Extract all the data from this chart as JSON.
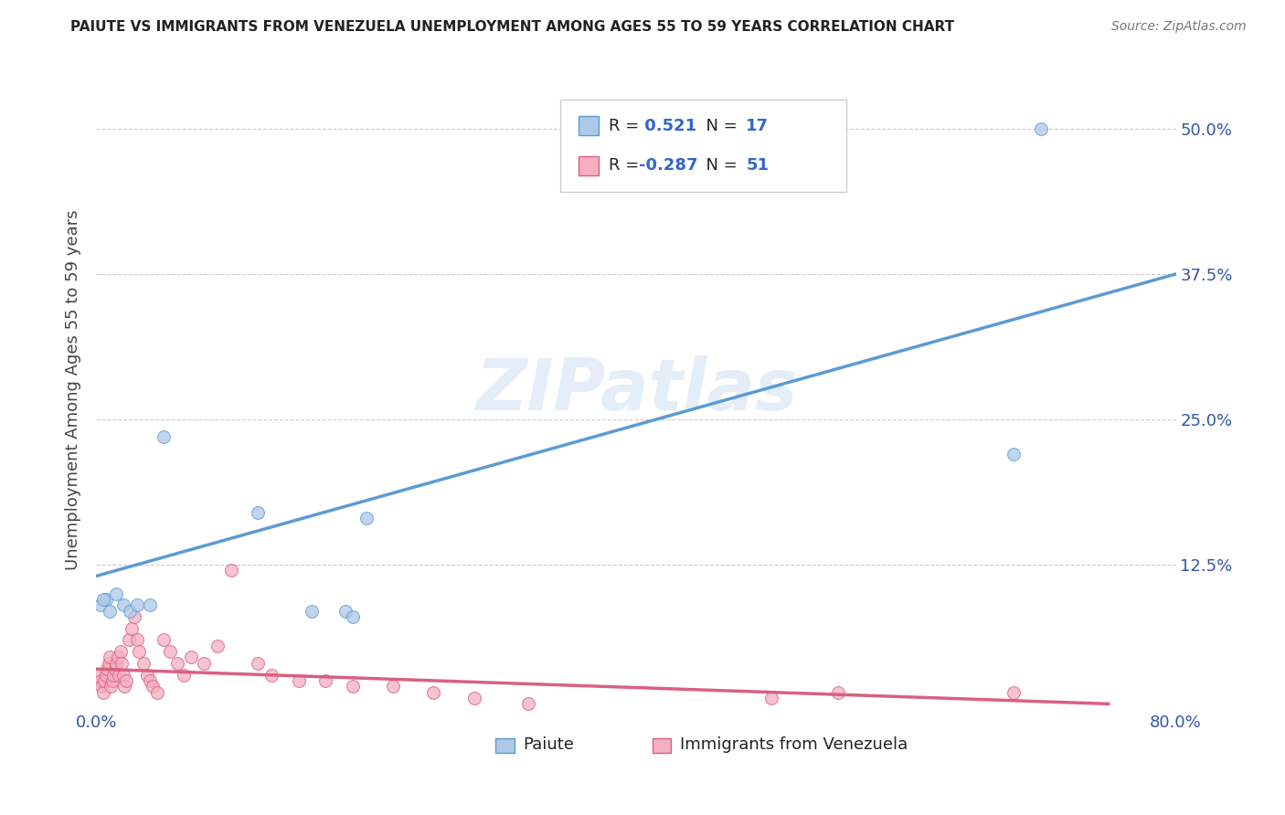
{
  "title": "PAIUTE VS IMMIGRANTS FROM VENEZUELA UNEMPLOYMENT AMONG AGES 55 TO 59 YEARS CORRELATION CHART",
  "source": "Source: ZipAtlas.com",
  "ylabel": "Unemployment Among Ages 55 to 59 years",
  "xlim": [
    0.0,
    0.8
  ],
  "ylim": [
    0.0,
    0.55
  ],
  "xticks": [
    0.0,
    0.2,
    0.4,
    0.6,
    0.8
  ],
  "xticklabels": [
    "0.0%",
    "",
    "",
    "",
    "80.0%"
  ],
  "ytick_positions": [
    0.0,
    0.125,
    0.25,
    0.375,
    0.5
  ],
  "ytick_labels_right": [
    "",
    "12.5%",
    "25.0%",
    "37.5%",
    "50.0%"
  ],
  "grid_color": "#cccccc",
  "background_color": "#ffffff",
  "watermark": "ZIPatlas",
  "paiute_R": 0.521,
  "paiute_N": 17,
  "venezuela_R": -0.287,
  "venezuela_N": 51,
  "paiute_color": "#adc8e8",
  "paiute_line_color": "#5b9bd5",
  "venezuela_color": "#f4afc0",
  "venezuela_line_color": "#d96080",
  "paiute_scatter_x": [
    0.003,
    0.007,
    0.01,
    0.015,
    0.02,
    0.025,
    0.03,
    0.04,
    0.05,
    0.12,
    0.16,
    0.185,
    0.19,
    0.2,
    0.68,
    0.7,
    0.005
  ],
  "paiute_scatter_y": [
    0.09,
    0.095,
    0.085,
    0.1,
    0.09,
    0.085,
    0.09,
    0.09,
    0.235,
    0.17,
    0.085,
    0.085,
    0.08,
    0.165,
    0.22,
    0.5,
    0.095
  ],
  "venezuela_scatter_x": [
    0.002,
    0.003,
    0.004,
    0.005,
    0.006,
    0.007,
    0.008,
    0.009,
    0.01,
    0.011,
    0.012,
    0.013,
    0.014,
    0.015,
    0.016,
    0.017,
    0.018,
    0.019,
    0.02,
    0.021,
    0.022,
    0.024,
    0.026,
    0.028,
    0.03,
    0.032,
    0.035,
    0.038,
    0.04,
    0.042,
    0.045,
    0.05,
    0.055,
    0.06,
    0.065,
    0.07,
    0.08,
    0.09,
    0.1,
    0.12,
    0.13,
    0.15,
    0.17,
    0.19,
    0.22,
    0.25,
    0.28,
    0.32,
    0.5,
    0.55,
    0.68
  ],
  "venezuela_scatter_y": [
    0.03,
    0.025,
    0.02,
    0.015,
    0.025,
    0.03,
    0.035,
    0.04,
    0.045,
    0.02,
    0.025,
    0.03,
    0.035,
    0.04,
    0.045,
    0.03,
    0.05,
    0.04,
    0.03,
    0.02,
    0.025,
    0.06,
    0.07,
    0.08,
    0.06,
    0.05,
    0.04,
    0.03,
    0.025,
    0.02,
    0.015,
    0.06,
    0.05,
    0.04,
    0.03,
    0.045,
    0.04,
    0.055,
    0.12,
    0.04,
    0.03,
    0.025,
    0.025,
    0.02,
    0.02,
    0.015,
    0.01,
    0.005,
    0.01,
    0.015,
    0.015
  ],
  "paiute_line_x0": 0.0,
  "paiute_line_x1": 0.8,
  "paiute_line_y0": 0.115,
  "paiute_line_y1": 0.375,
  "venezuela_line_x0": 0.0,
  "venezuela_line_x1": 0.75,
  "venezuela_line_y0": 0.035,
  "venezuela_line_y1": 0.005,
  "marker_size": 100
}
